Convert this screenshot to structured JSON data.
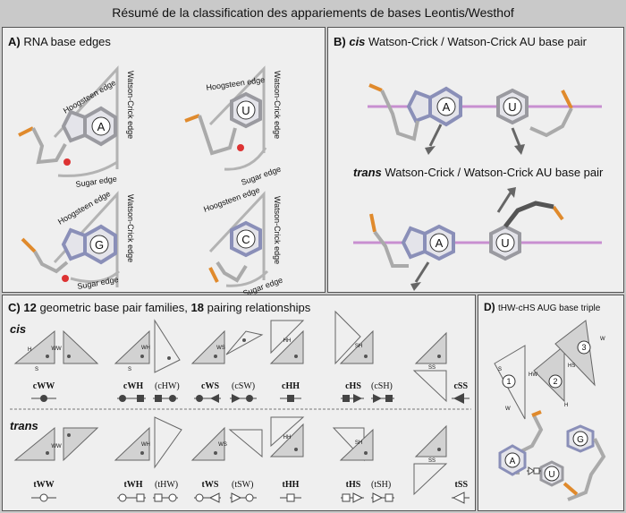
{
  "title": "Résumé de la classification des appariements de bases Leontis/Westhof",
  "panelA": {
    "letter": "A)",
    "title": "RNA base edges",
    "bases": [
      "A",
      "U",
      "G",
      "C"
    ],
    "edges": {
      "hoogsteen": "Hoogsteen edge",
      "watson_crick": "Watson-Crick edge",
      "sugar": "Sugar edge"
    }
  },
  "panelB": {
    "letter": "B)",
    "cis_word": "cis",
    "cis_rest": "Watson-Crick / Watson-Crick AU base pair",
    "trans_word": "trans",
    "trans_rest": "Watson-Crick / Watson-Crick AU base pair",
    "bases": [
      "A",
      "U"
    ]
  },
  "panelC": {
    "letter": "C)",
    "num1": "12",
    "text1": "geometric base pair families,",
    "num2": "18",
    "text2": "pairing relationships",
    "cis_label": "cis",
    "trans_label": "trans",
    "cis_families": [
      {
        "name": "cWW",
        "alt": ""
      },
      {
        "name": "cWH",
        "alt": "(cHW)"
      },
      {
        "name": "cWS",
        "alt": "(cSW)"
      },
      {
        "name": "cHH",
        "alt": ""
      },
      {
        "name": "cHS",
        "alt": "(cSH)"
      },
      {
        "name": "cSS",
        "alt": ""
      }
    ],
    "trans_families": [
      {
        "name": "tWW",
        "alt": ""
      },
      {
        "name": "tWH",
        "alt": "(tHW)"
      },
      {
        "name": "tWS",
        "alt": "(tSW)"
      },
      {
        "name": "tHH",
        "alt": ""
      },
      {
        "name": "tHS",
        "alt": "(tSH)"
      },
      {
        "name": "tSS",
        "alt": ""
      }
    ],
    "edge_letters": {
      "w": "W",
      "h": "H",
      "s": "S",
      "ww": "WW",
      "wh": "WH",
      "ws": "WS",
      "hh": "HH",
      "sh": "SH",
      "ss": "SS"
    }
  },
  "panelD": {
    "letter": "D)",
    "title": "tHW-cHS AUG base triple",
    "numbers": [
      "1",
      "2",
      "3"
    ],
    "labels": {
      "hw": "HW",
      "hs": "HS",
      "s": "S",
      "w": "W",
      "h": "H"
    },
    "bases": [
      "A",
      "U",
      "G"
    ]
  },
  "colors": {
    "background": "#c9c9c9",
    "panel": "#efefef",
    "plane_line": "#c88fd0",
    "triangle": "#d2d2d2"
  }
}
